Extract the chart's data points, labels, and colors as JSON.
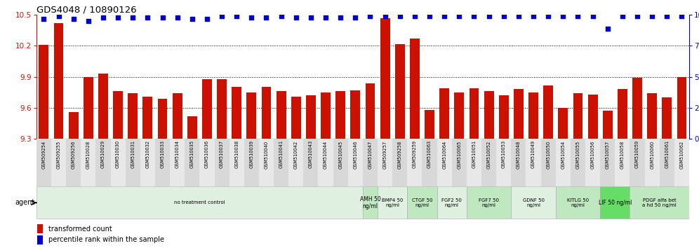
{
  "title": "GDS4048 / 10890126",
  "gsm_labels": [
    "GSM509254",
    "GSM509255",
    "GSM509256",
    "GSM510028",
    "GSM510029",
    "GSM510030",
    "GSM510031",
    "GSM510032",
    "GSM510033",
    "GSM510034",
    "GSM510035",
    "GSM510036",
    "GSM510037",
    "GSM510038",
    "GSM510039",
    "GSM510040",
    "GSM510041",
    "GSM510042",
    "GSM510043",
    "GSM510044",
    "GSM510045",
    "GSM510046",
    "GSM510047",
    "GSM509257",
    "GSM509258",
    "GSM509259",
    "GSM510063",
    "GSM510064",
    "GSM510065",
    "GSM510051",
    "GSM510052",
    "GSM510053",
    "GSM510048",
    "GSM510049",
    "GSM510050",
    "GSM510054",
    "GSM510055",
    "GSM510056",
    "GSM510057",
    "GSM510058",
    "GSM510059",
    "GSM510060",
    "GSM510061",
    "GSM510062"
  ],
  "bar_values": [
    10.21,
    10.42,
    9.56,
    9.9,
    9.93,
    9.76,
    9.74,
    9.71,
    9.69,
    9.74,
    9.52,
    9.88,
    9.88,
    9.8,
    9.75,
    9.8,
    9.76,
    9.71,
    9.72,
    9.75,
    9.76,
    9.77,
    9.84,
    10.47,
    10.22,
    10.27,
    9.58,
    9.79,
    9.75,
    9.79,
    9.76,
    9.72,
    9.78,
    9.75,
    9.82,
    9.6,
    9.74,
    9.73,
    9.57,
    9.78,
    9.89,
    9.74,
    9.7,
    9.9
  ],
  "percentile_values": [
    97,
    99,
    97,
    95,
    98,
    98,
    98,
    98,
    98,
    98,
    97,
    97,
    99,
    99,
    98,
    98,
    99,
    98,
    98,
    98,
    98,
    98,
    99,
    99,
    99,
    99,
    99,
    99,
    99,
    99,
    99,
    99,
    99,
    99,
    99,
    99,
    99,
    99,
    89,
    99,
    99,
    99,
    99,
    99
  ],
  "agent_groups": [
    {
      "label": "no treatment control",
      "start": 0,
      "end": 22,
      "color": "#e0f0e0"
    },
    {
      "label": "AMH 50\nng/ml",
      "start": 22,
      "end": 23,
      "color": "#c0e8c0"
    },
    {
      "label": "BMP4 50\nng/ml",
      "start": 23,
      "end": 25,
      "color": "#e0f0e0"
    },
    {
      "label": "CTGF 50\nng/ml",
      "start": 25,
      "end": 27,
      "color": "#c0e8c0"
    },
    {
      "label": "FGF2 50\nng/ml",
      "start": 27,
      "end": 29,
      "color": "#e0f0e0"
    },
    {
      "label": "FGF7 50\nng/ml",
      "start": 29,
      "end": 32,
      "color": "#c0e8c0"
    },
    {
      "label": "GDNF 50\nng/ml",
      "start": 32,
      "end": 35,
      "color": "#e0f0e0"
    },
    {
      "label": "KITLG 50\nng/ml",
      "start": 35,
      "end": 38,
      "color": "#c0e8c0"
    },
    {
      "label": "LIF 50 ng/ml",
      "start": 38,
      "end": 40,
      "color": "#66dd66"
    },
    {
      "label": "PDGF alfa bet\na hd 50 ng/ml",
      "start": 40,
      "end": 44,
      "color": "#c0e8c0"
    }
  ],
  "ylim_left": [
    9.3,
    10.5
  ],
  "ylim_right": [
    0,
    100
  ],
  "yticks_left": [
    9.3,
    9.6,
    9.9,
    10.2,
    10.5
  ],
  "yticks_right": [
    0,
    25,
    50,
    75,
    100
  ],
  "bar_color": "#cc1100",
  "dot_color": "#0000cc",
  "bg_color": "#ffffff"
}
